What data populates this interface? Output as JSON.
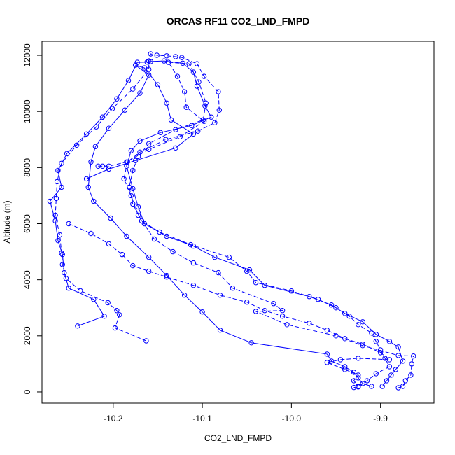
{
  "chart_data": {
    "type": "line",
    "title": "ORCAS RF11 CO2_LND_FMPD",
    "xlabel": "CO2_LND_FMPD",
    "ylabel": "Altitude (m)",
    "xlim": [
      -10.28,
      -9.84
    ],
    "ylim": [
      -400,
      12500
    ],
    "x_ticks": [
      -10.2,
      -10.1,
      -10.0,
      -9.9
    ],
    "x_tick_labels": [
      "-10.2",
      "-10.1",
      "-10.0",
      "-9.9"
    ],
    "y_ticks": [
      0,
      2000,
      4000,
      6000,
      8000,
      10000,
      12000
    ],
    "y_tick_labels": [
      "0",
      "2000",
      "4000",
      "6000",
      "8000",
      "10000",
      "12000"
    ],
    "grid": false,
    "marker": "open-circle",
    "line_style": "dashed between profile segments, solid on level legs",
    "color": "#0000ff",
    "series": [
      {
        "points": [
          [
            -10.163,
            1820
          ],
          [
            -10.198,
            2280
          ],
          [
            -10.193,
            2750
          ],
          [
            -10.196,
            2900
          ],
          [
            -10.206,
            3180
          ],
          [
            -10.237,
            3610
          ],
          [
            -10.253,
            4050
          ],
          [
            -10.257,
            4540
          ],
          [
            -10.258,
            4950
          ],
          [
            -10.26,
            5600
          ],
          [
            -10.265,
            6300
          ],
          [
            -10.264,
            6900
          ],
          [
            -10.263,
            7500
          ],
          [
            -10.258,
            8150
          ],
          [
            -10.241,
            8800
          ],
          [
            -10.219,
            9450
          ],
          [
            -10.201,
            10100
          ],
          [
            -10.178,
            10800
          ],
          [
            -10.16,
            11500
          ],
          [
            -10.16,
            11800
          ],
          [
            -10.158,
            12050
          ],
          [
            -10.151,
            12000
          ],
          [
            -10.14,
            11980
          ],
          [
            -10.13,
            11950
          ],
          [
            -10.123,
            11920
          ],
          [
            -10.106,
            11700
          ],
          [
            -10.098,
            11250
          ],
          [
            -10.082,
            10700
          ],
          [
            -10.081,
            10050
          ],
          [
            -10.086,
            9600
          ],
          [
            -10.105,
            9300
          ],
          [
            -10.141,
            9000
          ],
          [
            -10.17,
            8550
          ],
          [
            -10.184,
            8200
          ],
          [
            -10.188,
            7600
          ],
          [
            -10.18,
            7000
          ],
          [
            -10.172,
            6300
          ],
          [
            -10.154,
            5450
          ],
          [
            -10.133,
            5000
          ],
          [
            -10.11,
            4600
          ],
          [
            -10.082,
            4250
          ],
          [
            -10.066,
            3700
          ],
          [
            -10.02,
            3150
          ],
          [
            -10.01,
            2900
          ],
          [
            -10.04,
            2870
          ],
          [
            -10.005,
            2400
          ],
          [
            -9.95,
            2000
          ],
          [
            -9.92,
            1650
          ],
          [
            -9.88,
            1300
          ],
          [
            -9.863,
            1280
          ],
          [
            -9.865,
            1000
          ],
          [
            -9.866,
            600
          ],
          [
            -9.872,
            400
          ],
          [
            -9.875,
            200
          ],
          [
            -9.88,
            150
          ]
        ]
      },
      {
        "points": [
          [
            -10.24,
            2350
          ],
          [
            -10.21,
            2700
          ],
          [
            -10.222,
            3300
          ],
          [
            -10.25,
            3700
          ],
          [
            -10.255,
            4250
          ],
          [
            -10.257,
            4900
          ],
          [
            -10.262,
            5400
          ],
          [
            -10.265,
            6100
          ],
          [
            -10.271,
            6800
          ],
          [
            -10.258,
            7300
          ],
          [
            -10.262,
            7900
          ],
          [
            -10.252,
            8500
          ],
          [
            -10.23,
            9200
          ],
          [
            -10.212,
            9800
          ],
          [
            -10.196,
            10450
          ],
          [
            -10.183,
            11100
          ],
          [
            -10.173,
            11750
          ],
          [
            -10.162,
            11760
          ],
          [
            -10.158,
            11780
          ],
          [
            -10.143,
            11800
          ],
          [
            -10.122,
            11720
          ],
          [
            -10.11,
            11400
          ],
          [
            -10.106,
            10900
          ],
          [
            -10.097,
            10200
          ],
          [
            -10.09,
            9800
          ],
          [
            -10.112,
            9500
          ],
          [
            -10.147,
            9250
          ],
          [
            -10.17,
            8950
          ],
          [
            -10.18,
            8600
          ],
          [
            -10.185,
            8050
          ],
          [
            -10.178,
            7250
          ],
          [
            -10.172,
            6600
          ],
          [
            -10.165,
            6000
          ],
          [
            -10.14,
            5550
          ],
          [
            -10.11,
            5200
          ],
          [
            -10.086,
            4800
          ],
          [
            -10.047,
            4350
          ],
          [
            -10.03,
            3800
          ],
          [
            -9.98,
            3400
          ],
          [
            -9.955,
            3100
          ],
          [
            -9.94,
            2800
          ],
          [
            -9.92,
            2500
          ],
          [
            -9.905,
            2050
          ],
          [
            -9.89,
            1800
          ],
          [
            -9.88,
            1600
          ],
          [
            -9.875,
            1100
          ],
          [
            -9.883,
            800
          ],
          [
            -9.888,
            600
          ],
          [
            -9.893,
            400
          ],
          [
            -9.898,
            200
          ]
        ]
      },
      {
        "points": [
          [
            -10.217,
            8050
          ],
          [
            -10.212,
            8050
          ],
          [
            -10.205,
            8050
          ],
          [
            -10.185,
            8200
          ],
          [
            -10.16,
            8650
          ],
          [
            -10.125,
            9100
          ],
          [
            -10.098,
            9650
          ],
          [
            -10.118,
            10150
          ],
          [
            -10.12,
            10700
          ],
          [
            -10.128,
            11250
          ],
          [
            -10.138,
            11750
          ],
          [
            -10.115,
            11700
          ],
          [
            -10.104,
            11050
          ],
          [
            -10.096,
            10300
          ],
          [
            -10.099,
            9700
          ],
          [
            -10.13,
            9350
          ],
          [
            -10.16,
            8850
          ],
          [
            -10.172,
            8400
          ],
          [
            -10.178,
            7900
          ],
          [
            -10.182,
            7300
          ],
          [
            -10.178,
            6700
          ],
          [
            -10.168,
            6100
          ],
          [
            -10.148,
            5700
          ],
          [
            -10.113,
            5250
          ],
          [
            -10.07,
            4800
          ],
          [
            -10.05,
            4300
          ],
          [
            -10.04,
            3900
          ],
          [
            -10.0,
            3600
          ],
          [
            -9.97,
            3300
          ],
          [
            -9.95,
            3000
          ],
          [
            -9.935,
            2700
          ],
          [
            -9.925,
            2400
          ],
          [
            -9.91,
            2100
          ],
          [
            -9.905,
            1800
          ],
          [
            -9.9,
            1500
          ],
          [
            -9.895,
            1200
          ],
          [
            -9.89,
            900
          ],
          [
            -9.905,
            650
          ],
          [
            -9.915,
            400
          ],
          [
            -9.925,
            180
          ],
          [
            -9.93,
            160
          ]
        ]
      },
      {
        "points": [
          [
            -10.23,
            7600
          ],
          [
            -10.205,
            7950
          ],
          [
            -10.175,
            8250
          ],
          [
            -10.13,
            8700
          ],
          [
            -10.11,
            9200
          ],
          [
            -10.135,
            9700
          ],
          [
            -10.14,
            10300
          ],
          [
            -10.15,
            10950
          ],
          [
            -10.165,
            11550
          ],
          [
            -10.175,
            11650
          ],
          [
            -10.16,
            11300
          ],
          [
            -10.17,
            10650
          ],
          [
            -10.187,
            10050
          ],
          [
            -10.205,
            9400
          ],
          [
            -10.22,
            8750
          ],
          [
            -10.225,
            8200
          ],
          [
            -10.228,
            7300
          ],
          [
            -10.222,
            6800
          ],
          [
            -10.203,
            6200
          ],
          [
            -10.185,
            5550
          ],
          [
            -10.16,
            4800
          ],
          [
            -10.14,
            4150
          ],
          [
            -10.12,
            3450
          ],
          [
            -10.1,
            2850
          ],
          [
            -10.08,
            2200
          ],
          [
            -10.045,
            1750
          ],
          [
            -9.96,
            1350
          ],
          [
            -9.955,
            1100
          ],
          [
            -9.94,
            900
          ],
          [
            -9.93,
            700
          ],
          [
            -9.925,
            500
          ],
          [
            -9.92,
            300
          ],
          [
            -9.91,
            200
          ]
        ]
      },
      {
        "points": [
          [
            -10.25,
            6000
          ],
          [
            -10.225,
            5650
          ],
          [
            -10.205,
            5280
          ],
          [
            -10.19,
            4900
          ],
          [
            -10.178,
            4500
          ],
          [
            -10.16,
            4300
          ],
          [
            -10.14,
            4100
          ],
          [
            -10.11,
            3800
          ],
          [
            -10.08,
            3450
          ],
          [
            -10.05,
            3200
          ],
          [
            -10.03,
            2900
          ],
          [
            -10.01,
            2700
          ],
          [
            -9.98,
            2450
          ],
          [
            -9.96,
            2200
          ],
          [
            -9.94,
            1900
          ],
          [
            -9.92,
            1700
          ],
          [
            -9.9,
            1400
          ],
          [
            -9.89,
            1150
          ],
          [
            -9.925,
            1200
          ],
          [
            -9.945,
            1150
          ],
          [
            -9.96,
            1050
          ],
          [
            -9.94,
            800
          ],
          [
            -9.925,
            600
          ],
          [
            -9.93,
            400
          ],
          [
            -9.925,
            200
          ]
        ]
      }
    ]
  }
}
